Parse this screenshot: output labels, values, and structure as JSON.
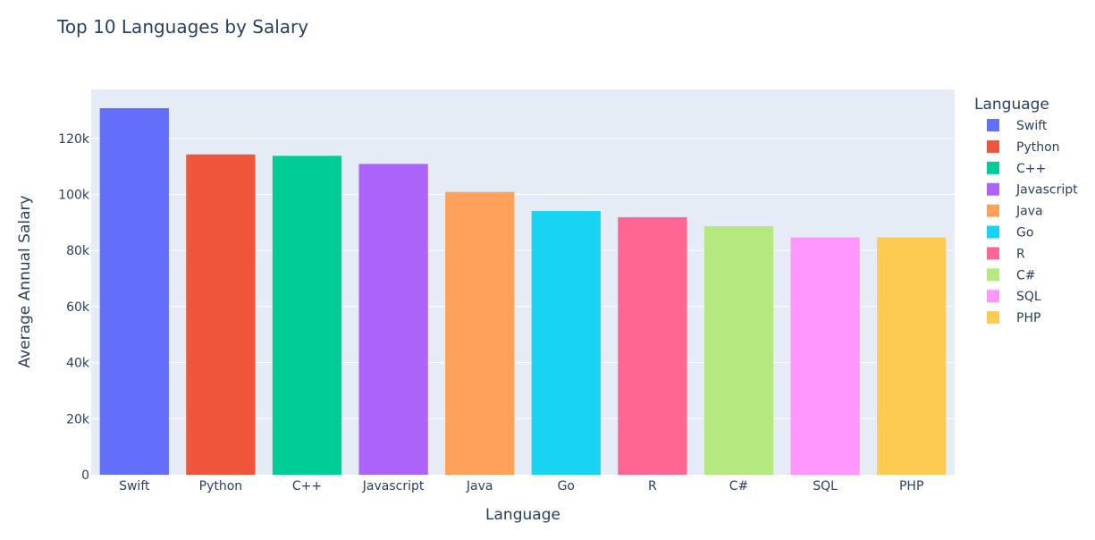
{
  "chart_data": {
    "type": "bar",
    "title": "Top 10 Languages by Salary",
    "xlabel": "Language",
    "ylabel": "Average Annual Salary",
    "ylim": [
      0,
      137500
    ],
    "yticks": [
      0,
      20000,
      40000,
      60000,
      80000,
      100000,
      120000
    ],
    "ytick_labels": [
      "0",
      "20k",
      "40k",
      "60k",
      "80k",
      "100k",
      "120k"
    ],
    "categories": [
      "Swift",
      "Python",
      "C++",
      "Javascript",
      "Java",
      "Go",
      "R",
      "C#",
      "SQL",
      "PHP"
    ],
    "values": [
      130800,
      114300,
      113800,
      110900,
      100900,
      94100,
      91900,
      88700,
      84700,
      84700
    ],
    "colors": [
      "#636efa",
      "#EF553B",
      "#00cc96",
      "#ab63fa",
      "#FFA15A",
      "#19d3f3",
      "#FF6692",
      "#B6E880",
      "#FF97FF",
      "#FECB52"
    ],
    "legend": {
      "title": "Language",
      "entries": [
        "Swift",
        "Python",
        "C++",
        "Javascript",
        "Java",
        "Go",
        "R",
        "C#",
        "SQL",
        "PHP"
      ],
      "placement": "right"
    },
    "grid": true,
    "plot_bg": "#E5ECF6"
  }
}
